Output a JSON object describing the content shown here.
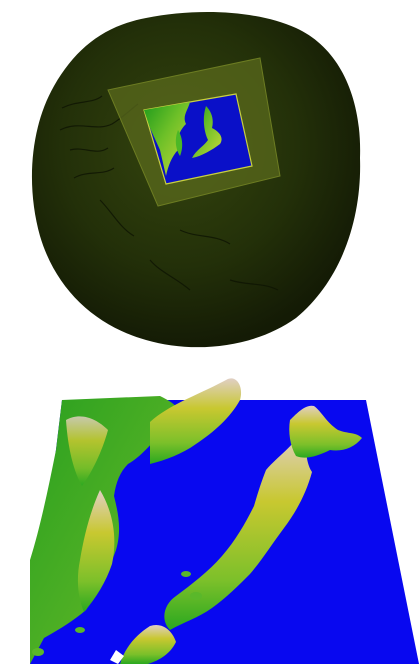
{
  "figure": {
    "panels": [
      {
        "id": "globe",
        "description_visible_text": ""
      },
      {
        "id": "terrain",
        "description_visible_text": ""
      }
    ]
  },
  "colors": {
    "background": "#ffffff",
    "globe_dark": "#1d2608",
    "globe_mid": "#2c3a0c",
    "outer_domain": "#525e1a",
    "inner_domain_border": "#c8d040",
    "ocean": "#0a10c8",
    "land_low": "#1fa81e",
    "land_mid": "#9ccc30",
    "land_high": "#d8c8b8",
    "terrain_ocean": "#0808f0"
  }
}
